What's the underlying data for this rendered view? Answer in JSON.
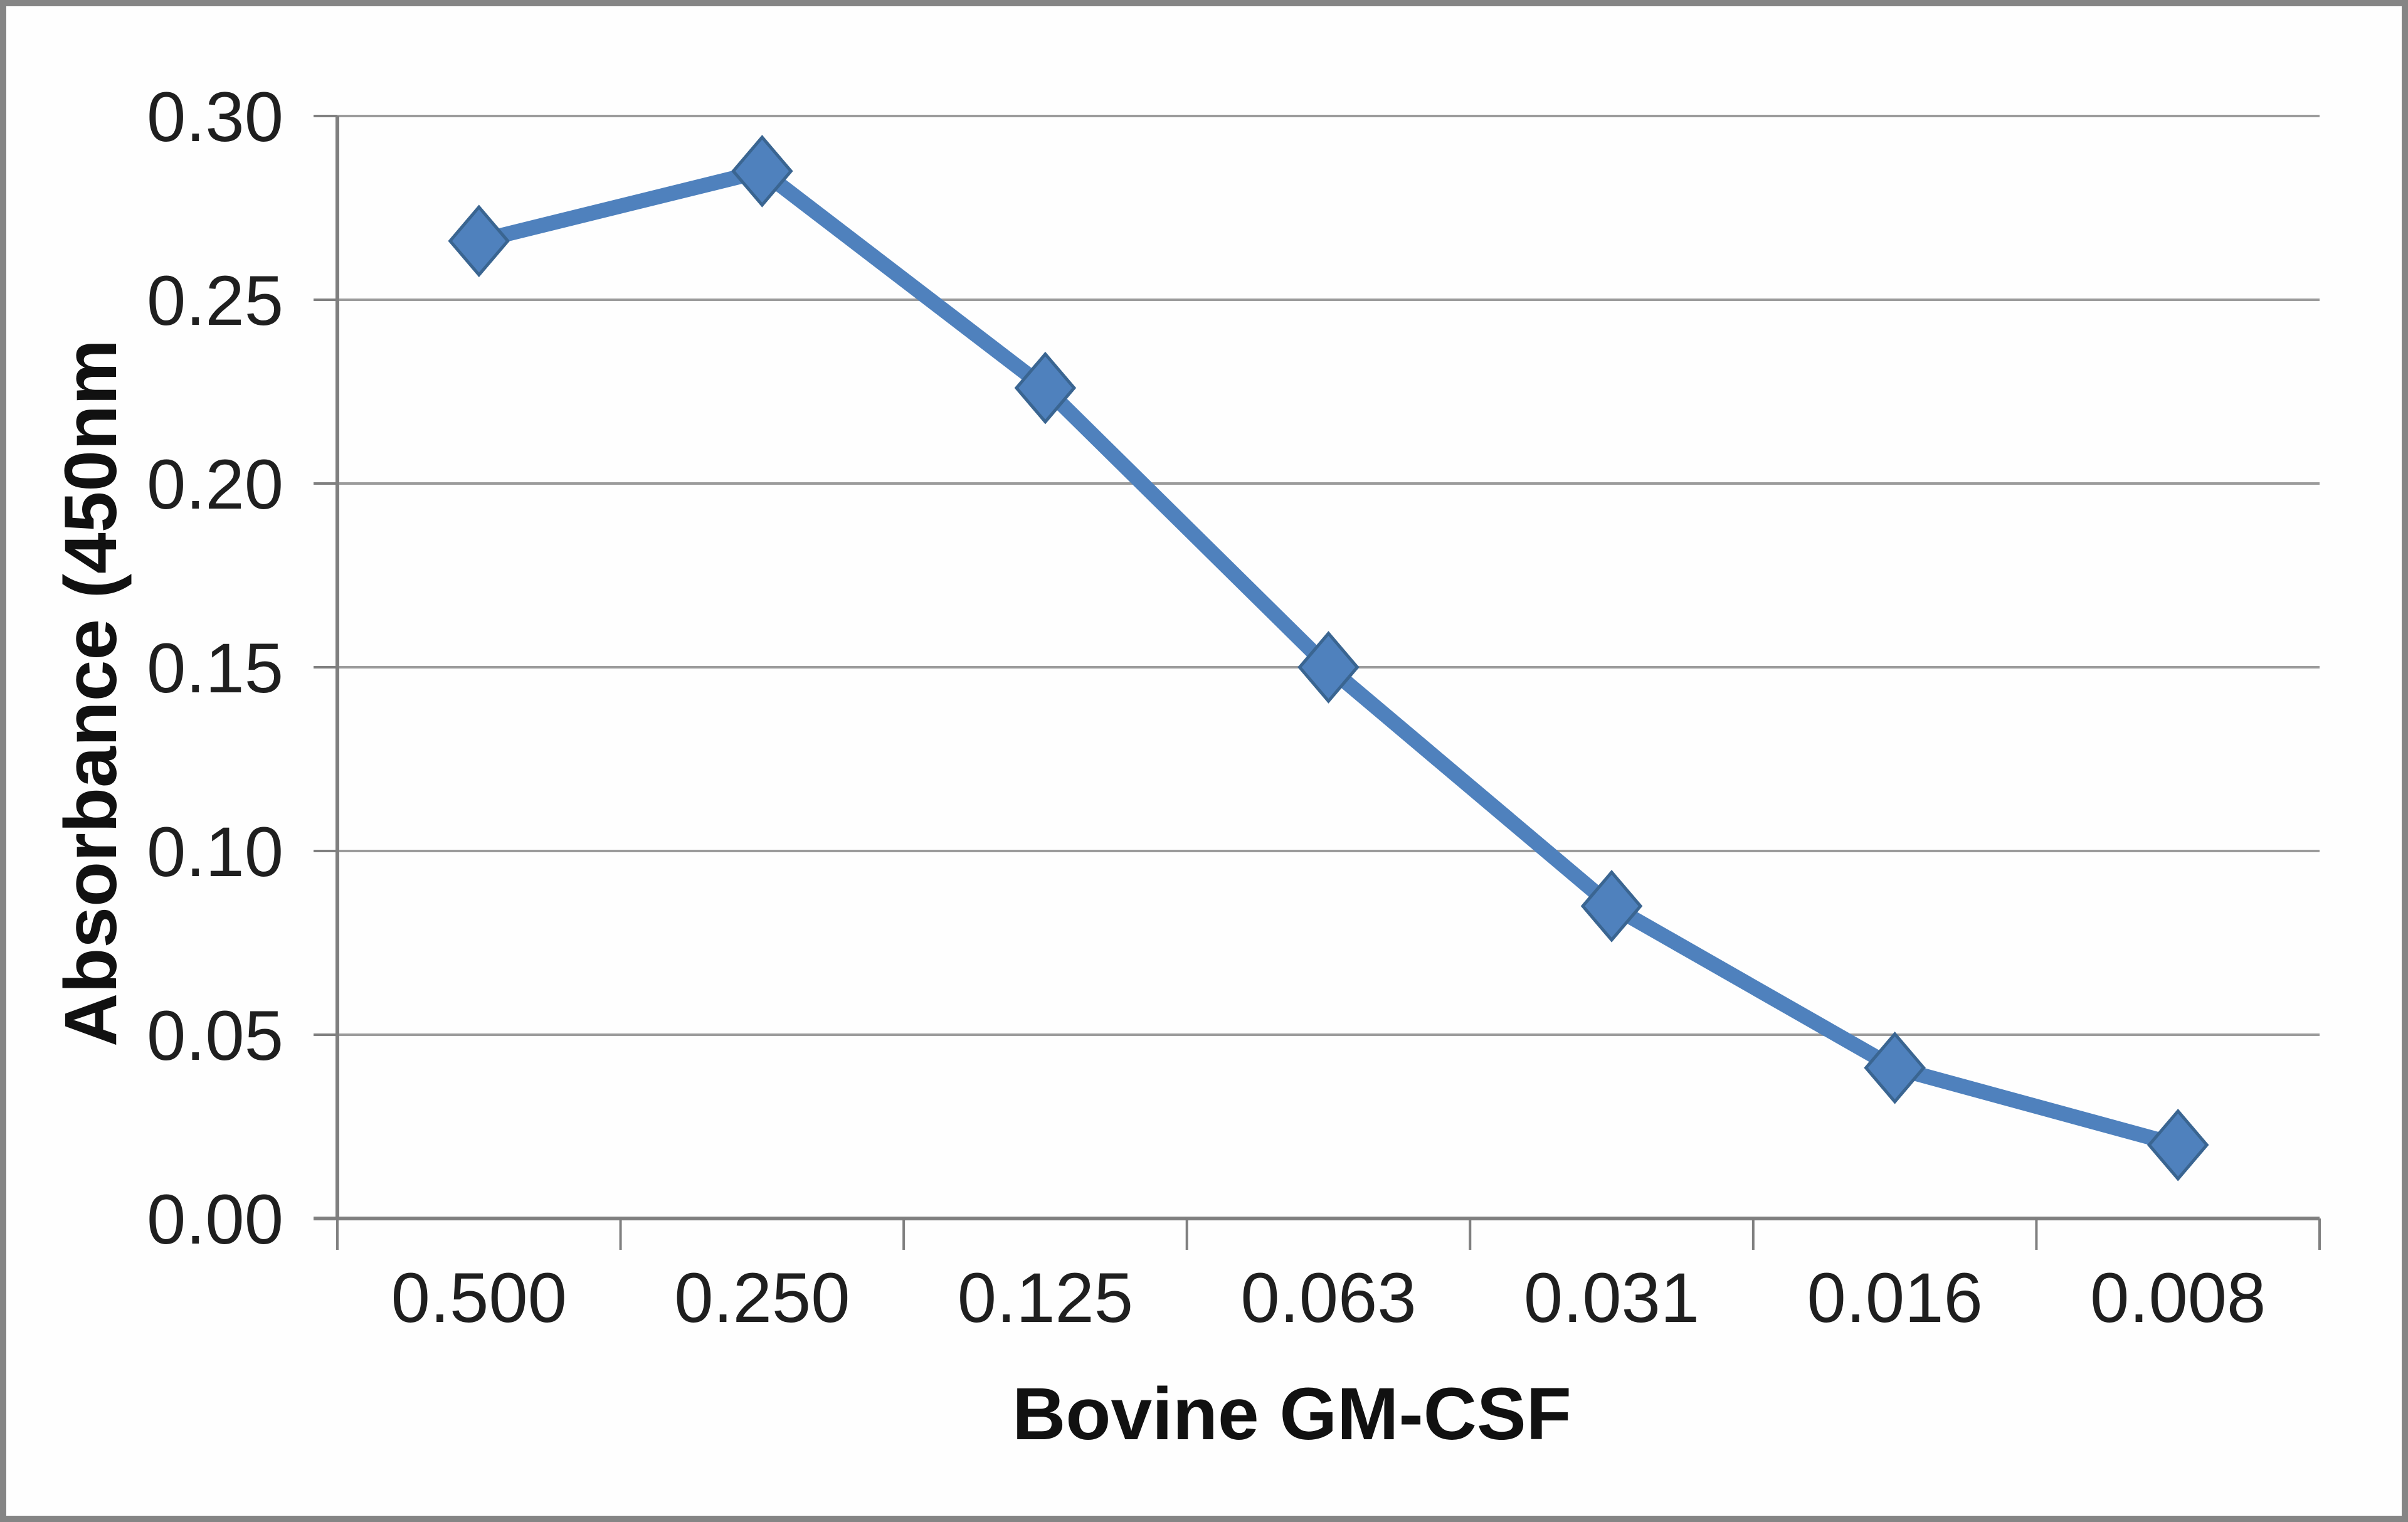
{
  "page": {
    "background": "#fefefe",
    "frame_border_color": "#858585"
  },
  "chart_data": {
    "type": "line",
    "title": "",
    "xlabel": "Bovine GM-CSF",
    "ylabel": "Absorbance (450nm",
    "categories": [
      "0.500",
      "0.250",
      "0.125",
      "0.063",
      "0.031",
      "0.016",
      "0.008"
    ],
    "values": [
      0.266,
      0.285,
      0.226,
      0.15,
      0.085,
      0.041,
      0.02
    ],
    "ylim": [
      0,
      0.3
    ],
    "yticks": [
      "0.30",
      "0.25",
      "0.20",
      "0.15",
      "0.10",
      "0.05",
      "0.00"
    ],
    "grid": "horizontal",
    "legend": "none",
    "marker": "diamond",
    "line_color": "#4F81BD",
    "marker_edge_color": "#3A6591",
    "grid_color": "#9b9b9b",
    "axis_color": "#7f7f7f",
    "text_color": "#1f1f1f"
  }
}
